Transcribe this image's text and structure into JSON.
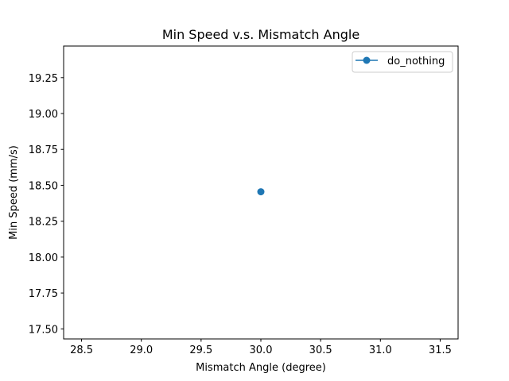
{
  "chart_data": {
    "type": "line",
    "title": "Min Speed v.s. Mismatch Angle",
    "xlabel": "Mismatch Angle (degree)",
    "ylabel": "Min Speed (mm/s)",
    "xlim": [
      28.35,
      31.65
    ],
    "ylim": [
      17.43,
      19.47
    ],
    "xticks": [
      "28.5",
      "29.0",
      "29.5",
      "30.0",
      "30.5",
      "31.0",
      "31.5"
    ],
    "yticks": [
      "17.50",
      "17.75",
      "18.00",
      "18.25",
      "18.50",
      "18.75",
      "19.00",
      "19.25"
    ],
    "grid": false,
    "legend_position": "top-right",
    "series": [
      {
        "name": "do_nothing",
        "color": "#1f77b4",
        "marker": "circle",
        "x": [
          30.0
        ],
        "y": [
          18.455
        ]
      }
    ]
  }
}
